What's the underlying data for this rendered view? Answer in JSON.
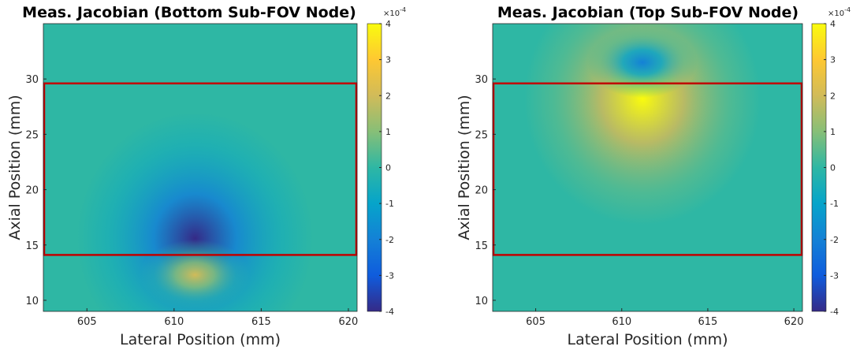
{
  "chart_data": [
    {
      "type": "heatmap",
      "title": "Meas. Jacobian (Bottom Sub-FOV Node)",
      "xlabel": "Lateral Position (mm)",
      "ylabel": "Axial Position (mm)",
      "xlim": [
        602.5,
        620.5
      ],
      "ylim": [
        9,
        35
      ],
      "xticks": [
        "605",
        "610",
        "615",
        "620"
      ],
      "yticks": [
        "10",
        "15",
        "20",
        "25",
        "30"
      ],
      "colorbar": {
        "ticks": [
          "4",
          "3",
          "2",
          "1",
          "0",
          "-1",
          "-2",
          "-3",
          "-4"
        ],
        "exponent": "×10-4",
        "range": [
          -4,
          4
        ],
        "colormap": [
          "#352a87",
          "#0f5cdd",
          "#1481d6",
          "#06a4ca",
          "#2eb7a4",
          "#87bf77",
          "#d1bb59",
          "#fec832",
          "#f9fb0e"
        ]
      },
      "region_box": {
        "x": [
          602.5,
          620.5
        ],
        "y": [
          14.1,
          29.6
        ],
        "color": "#c00000"
      },
      "features": [
        {
          "kind": "negative-peak",
          "x": 611.2,
          "y": 15.6,
          "value": -4
        },
        {
          "kind": "positive-peak",
          "x": 611.2,
          "y": 12.3,
          "value": 2.2
        }
      ]
    },
    {
      "type": "heatmap",
      "title": "Meas. Jacobian (Top Sub-FOV Node)",
      "xlabel": "Lateral Position (mm)",
      "ylabel": "Axial Position (mm)",
      "xlim": [
        602.5,
        620.5
      ],
      "ylim": [
        9,
        35
      ],
      "xticks": [
        "605",
        "610",
        "615",
        "620"
      ],
      "yticks": [
        "10",
        "15",
        "20",
        "25",
        "30"
      ],
      "colorbar": {
        "ticks": [
          "4",
          "3",
          "2",
          "1",
          "0",
          "-1",
          "-2",
          "-3",
          "-4"
        ],
        "exponent": "×10-4",
        "range": [
          -4,
          4
        ],
        "colormap": [
          "#352a87",
          "#0f5cdd",
          "#1481d6",
          "#06a4ca",
          "#2eb7a4",
          "#87bf77",
          "#d1bb59",
          "#fec832",
          "#f9fb0e"
        ]
      },
      "region_box": {
        "x": [
          602.5,
          620.5
        ],
        "y": [
          14.1,
          29.6
        ],
        "color": "#c00000"
      },
      "features": [
        {
          "kind": "positive-peak",
          "x": 611.2,
          "y": 28.2,
          "value": 4
        },
        {
          "kind": "negative-peak",
          "x": 611.2,
          "y": 31.5,
          "value": -2
        }
      ]
    }
  ]
}
